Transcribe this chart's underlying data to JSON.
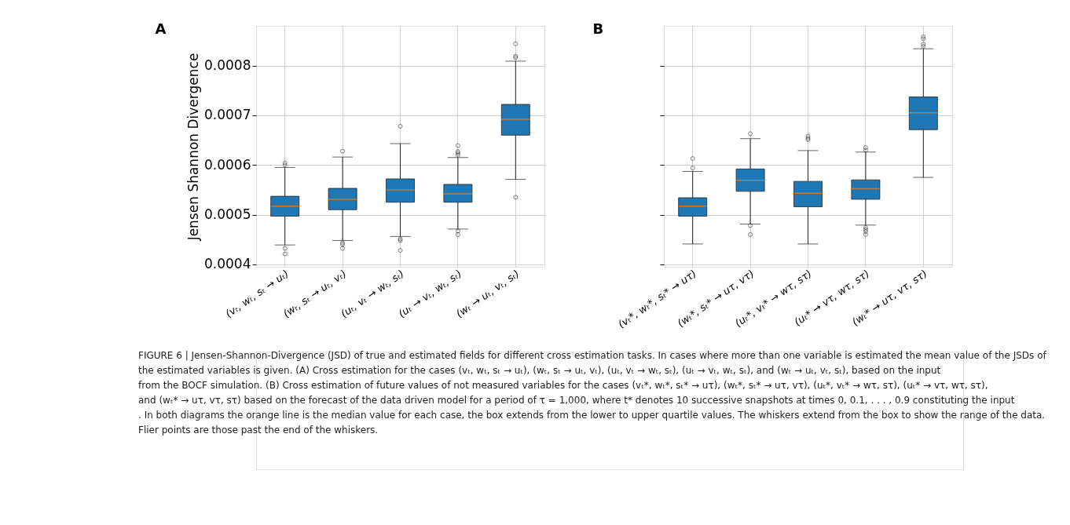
{
  "chart_data": [
    {
      "type": "box",
      "title": "A",
      "ylabel": "Jensen Shannon Divergence",
      "categories": [
        "(vₜ, wₜ, sₜ → uₜ)",
        "(wₜ, sₜ → uₜ, vₜ)",
        "(uₜ, vₜ → wₜ, sₜ)",
        "(uₜ → vₜ, wₜ, sₜ)",
        "(wₜ → uₜ, vₜ, sₜ)"
      ],
      "ylim": [
        0.000395,
        0.00088
      ],
      "yticks": [
        0.0004,
        0.0005,
        0.0006,
        0.0007,
        0.0008
      ],
      "grid": true,
      "series": [
        {
          "color": "#1f77b4",
          "boxes": [
            {
              "low": 0.000439,
              "q1": 0.000497,
              "median": 0.000517,
              "q3": 0.000537,
              "high": 0.000595,
              "outliers": [
                0.000432,
                0.000421,
                0.000604,
                0.0006
              ]
            },
            {
              "low": 0.000448,
              "q1": 0.00051,
              "median": 0.000531,
              "q3": 0.000553,
              "high": 0.000616,
              "outliers": [
                0.000443,
                0.00044,
                0.000432,
                0.000628
              ]
            },
            {
              "low": 0.000456,
              "q1": 0.000525,
              "median": 0.00055,
              "q3": 0.000572,
              "high": 0.000643,
              "outliers": [
                0.000451,
                0.000448,
                0.000428,
                0.000678
              ]
            },
            {
              "low": 0.000471,
              "q1": 0.000525,
              "median": 0.000542,
              "q3": 0.000561,
              "high": 0.000615,
              "outliers": [
                0.000467,
                0.00046,
                0.00062,
                0.000624,
                0.000627,
                0.000639
              ]
            },
            {
              "low": 0.000571,
              "q1": 0.00066,
              "median": 0.000692,
              "q3": 0.000722,
              "high": 0.000809,
              "outliers": [
                0.000535,
                0.000816,
                0.000819,
                0.000844
              ]
            }
          ]
        }
      ],
      "annotations": [
        "FIGURE 6 | Jensen-Shannon-Divergence (JSD) of true and estimated fields for different cross estimation tasks. In cases where more than one variable is estimated the mean value of the JSDs of the estimated variables is given. (A) Cross estimation for the cases (vₜ, wₜ, sₜ → uₜ), (wₜ, sₜ → uₜ, vₜ), (uₜ, vₜ → wₜ, sₜ), (uₜ → vₜ, wₜ, sₜ), and (wₜ → uₜ, vₜ, sₜ), based on the input from the BOCF simulation. (B) Cross estimation of future values of not measured variables for the cases (vₜ*, wₜ*, sₜ* → uτ), (wₜ*, sₜ* → uτ, vτ), (uₜ*, vₜ* → wτ, sτ), (uₜ* → vτ, wτ, sτ), and (wₜ* → uτ, vτ, sτ) based on the forecast of the data driven model for a period of τ = 1,000, where t* denotes 10 successive snapshots at times 0, 0.1, . . . , 0.9 constituting the input . In both diagrams the orange line is the median value for each case, the box extends from the lower to upper quartile values. The whiskers extend from the box to show the range of the data. Flier points are those past the end of the whiskers."
      ]
    },
    {
      "type": "box",
      "title": "B",
      "categories": [
        "(vₜ*, wₜ*, sₜ* → uτ)",
        "(wₜ*, sₜ* → uτ, vτ)",
        "(uₜ*, vₜ* → wτ, sτ)",
        "(uₜ* → vτ, wτ, sτ)",
        "(wₜ* → uτ, vτ, sτ)"
      ],
      "ylim": [
        0.000395,
        0.00088
      ],
      "yticks": [
        0.0004,
        0.0005,
        0.0006,
        0.0007,
        0.0008
      ],
      "grid": true,
      "tick_labels": "x",
      "series": [
        {
          "color": "#1f77b4",
          "boxes": [
            {
              "low": 0.000441,
              "q1": 0.000497,
              "median": 0.000517,
              "q3": 0.000534,
              "high": 0.000587,
              "outliers": [
                0.000594,
                0.000613
              ]
            },
            {
              "low": 0.000481,
              "q1": 0.000547,
              "median": 0.000569,
              "q3": 0.000592,
              "high": 0.000653,
              "outliers": [
                0.000478,
                0.00046,
                0.000663
              ]
            },
            {
              "low": 0.000441,
              "q1": 0.000516,
              "median": 0.000543,
              "q3": 0.000567,
              "high": 0.000629,
              "outliers": [
                0.000651,
                0.000654,
                0.000658
              ]
            },
            {
              "low": 0.000479,
              "q1": 0.000531,
              "median": 0.000552,
              "q3": 0.00057,
              "high": 0.000626,
              "outliers": [
                0.000474,
                0.00047,
                0.000466,
                0.00046,
                0.00063,
                0.000635
              ]
            },
            {
              "low": 0.000575,
              "q1": 0.000671,
              "median": 0.000705,
              "q3": 0.000737,
              "high": 0.000834,
              "outliers": [
                0.000839,
                0.000843,
                0.000854,
                0.000858
              ]
            }
          ]
        }
      ]
    }
  ]
}
